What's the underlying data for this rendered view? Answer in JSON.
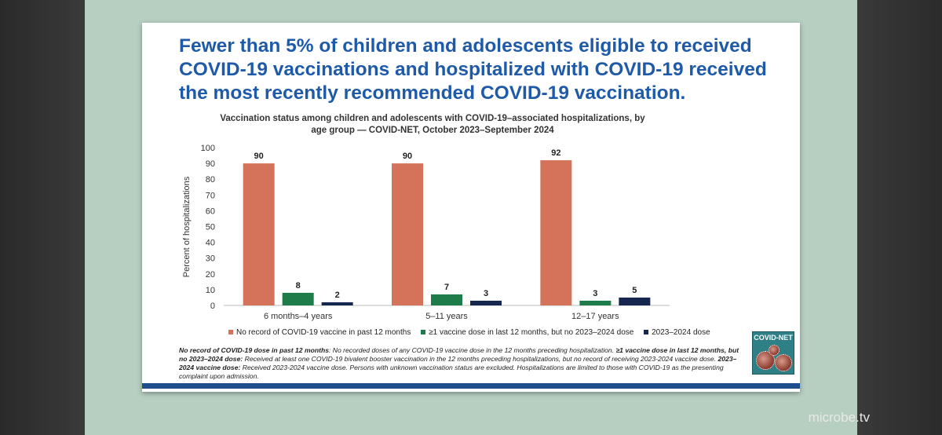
{
  "slide": {
    "title": "Fewer than 5% of children and adolescents eligible to received COVID-19 vaccinations and hospitalized with COVID-19 received the most recently recommended COVID-19 vaccination."
  },
  "chart_data": {
    "type": "bar",
    "title": "Vaccination status among children and adolescents with COVID-19–associated hospitalizations, by age group — COVID-NET, October 2023–September 2024",
    "xlabel": "",
    "ylabel": "Percent of hospitalizations",
    "ylim": [
      0,
      100
    ],
    "yticks": [
      0,
      10,
      20,
      30,
      40,
      50,
      60,
      70,
      80,
      90,
      100
    ],
    "categories": [
      "6 months–4 years",
      "5–11 years",
      "12–17 years"
    ],
    "series": [
      {
        "name": "No record of COVID-19 vaccine in past 12 months",
        "color": "#d4735a",
        "values": [
          90,
          90,
          92
        ]
      },
      {
        "name": "≥1 vaccine dose in last 12 months, but no 2023–2024 dose",
        "color": "#1e7b4a",
        "values": [
          8,
          7,
          3
        ]
      },
      {
        "name": "2023–2024 dose",
        "color": "#15264f",
        "values": [
          2,
          3,
          5
        ]
      }
    ],
    "legend_position": "bottom",
    "grid": false
  },
  "footnote": {
    "term1": "No record of COVID-19 dose in past 12 months",
    "text1": ": No recorded doses of any COVID-19 vaccine dose in the 12 months preceding hospitalization.",
    "term2": "≥1 vaccine dose in last 12 months, but no 2023–2024 dose:",
    "text2": " Received at least one COVID-19 bivalent booster vaccination in the 12 months preceding hospitalizations, but no record of receiving 2023-2024 vaccine dose.",
    "term3": "2023–2024 vaccine dose:",
    "text3": " Received 2023-2024 vaccine dose. Persons with unknown vaccination status are excluded. Hospitalizations are limited to those with COVID-19 as the presenting complaint upon admission."
  },
  "logo": {
    "text": "COVID-NET"
  },
  "watermark": "microbe.tv"
}
